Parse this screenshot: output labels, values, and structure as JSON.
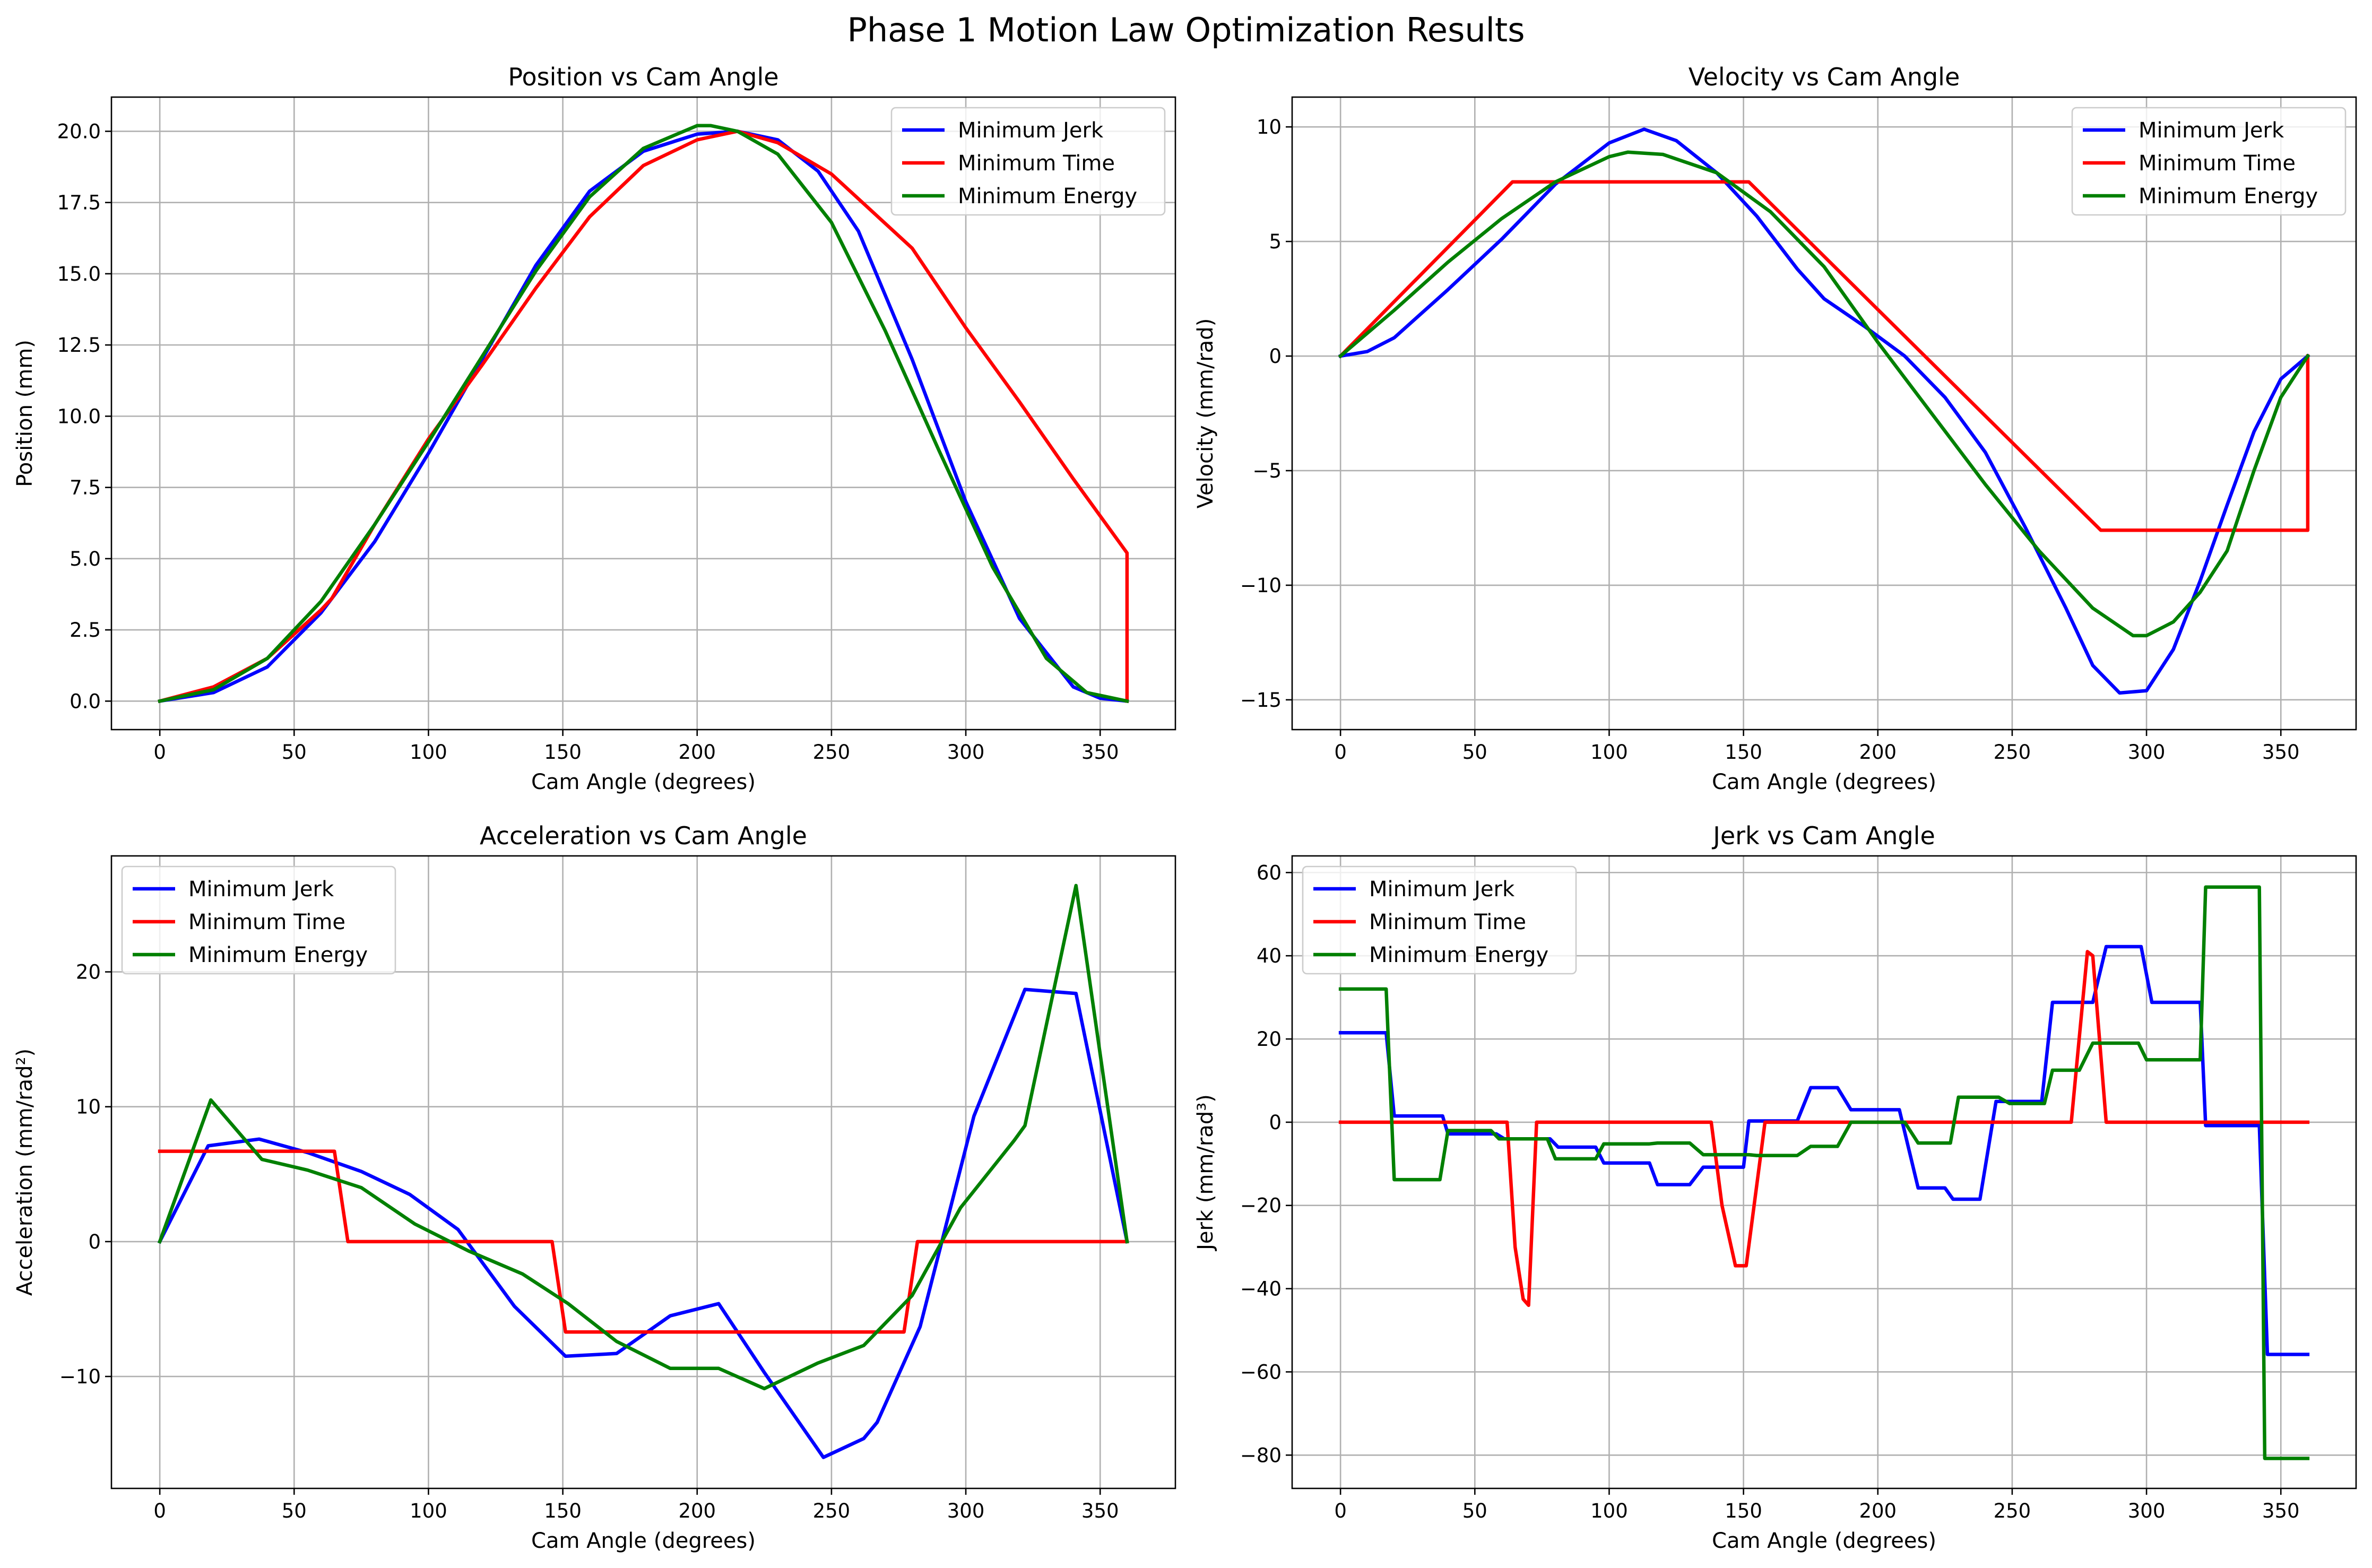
{
  "figure": {
    "title": "Phase 1 Motion Law Optimization Results"
  },
  "colors": {
    "Minimum Jerk": "#0000ff",
    "Minimum Time": "#ff0000",
    "Minimum Energy": "#008000"
  },
  "chart_data": [
    {
      "type": "line",
      "title": "Position vs Cam Angle",
      "xlabel": "Cam Angle (degrees)",
      "ylabel": "Position (mm)",
      "xlim": [
        -18,
        378
      ],
      "ylim": [
        -1.0,
        21.2
      ],
      "xticks": [
        0,
        50,
        100,
        150,
        200,
        250,
        300,
        350
      ],
      "yticks": [
        0.0,
        2.5,
        5.0,
        7.5,
        10.0,
        12.5,
        15.0,
        17.5,
        20.0
      ],
      "ytick_labels": [
        "0.0",
        "2.5",
        "5.0",
        "7.5",
        "10.0",
        "12.5",
        "15.0",
        "17.5",
        "20.0"
      ],
      "grid": true,
      "legend": "upper-right",
      "series": [
        {
          "name": "Minimum Jerk",
          "x": [
            0,
            20,
            40,
            60,
            80,
            100,
            120,
            140,
            160,
            180,
            200,
            215,
            230,
            245,
            260,
            280,
            300,
            320,
            340,
            350,
            360
          ],
          "y": [
            0.0,
            0.3,
            1.2,
            3.1,
            5.6,
            8.7,
            12.0,
            15.3,
            17.9,
            19.3,
            19.9,
            20.0,
            19.7,
            18.6,
            16.5,
            12.0,
            7.0,
            2.9,
            0.5,
            0.1,
            0.0
          ]
        },
        {
          "name": "Minimum Time",
          "x": [
            0,
            20,
            40,
            60,
            64,
            80,
            100,
            120,
            140,
            152,
            160,
            180,
            200,
            215,
            230,
            250,
            280,
            300,
            320,
            340,
            360,
            360
          ],
          "y": [
            0.0,
            0.5,
            1.5,
            3.2,
            3.6,
            6.2,
            9.2,
            11.8,
            14.5,
            16.0,
            17.0,
            18.8,
            19.7,
            20.0,
            19.6,
            18.5,
            15.9,
            13.1,
            10.5,
            7.8,
            5.2,
            0.0
          ]
        },
        {
          "name": "Minimum Energy",
          "x": [
            0,
            20,
            40,
            60,
            80,
            100,
            120,
            140,
            160,
            180,
            200,
            205,
            215,
            230,
            250,
            270,
            290,
            310,
            330,
            345,
            360
          ],
          "y": [
            0.0,
            0.4,
            1.5,
            3.5,
            6.2,
            9.1,
            12.1,
            15.1,
            17.7,
            19.4,
            20.2,
            20.2,
            20.0,
            19.2,
            16.8,
            13.0,
            8.8,
            4.7,
            1.5,
            0.3,
            0.0
          ]
        }
      ]
    },
    {
      "type": "line",
      "title": "Velocity vs Cam Angle",
      "xlabel": "Cam Angle (degrees)",
      "ylabel": "Velocity (mm/rad)",
      "xlim": [
        -18,
        378
      ],
      "ylim": [
        -16.3,
        11.3
      ],
      "xticks": [
        0,
        50,
        100,
        150,
        200,
        250,
        300,
        350
      ],
      "yticks": [
        -15,
        -10,
        -5,
        0,
        5,
        10
      ],
      "ytick_labels": [
        "−15",
        "−10",
        "−5",
        "0",
        "5",
        "10"
      ],
      "grid": true,
      "legend": "upper-right",
      "series": [
        {
          "name": "Minimum Jerk",
          "x": [
            0,
            10,
            20,
            40,
            60,
            80,
            100,
            113,
            125,
            140,
            155,
            170,
            180,
            195,
            210,
            225,
            240,
            255,
            270,
            280,
            290,
            300,
            310,
            320,
            330,
            340,
            350,
            360
          ],
          "y": [
            0.0,
            0.2,
            0.8,
            2.9,
            5.1,
            7.5,
            9.3,
            9.9,
            9.4,
            8.0,
            6.1,
            3.8,
            2.5,
            1.3,
            0.0,
            -1.8,
            -4.2,
            -7.5,
            -11.0,
            -13.5,
            -14.7,
            -14.6,
            -12.8,
            -9.8,
            -6.5,
            -3.3,
            -1.0,
            0.0
          ]
        },
        {
          "name": "Minimum Time",
          "x": [
            0,
            64,
            152,
            283,
            360,
            360
          ],
          "y": [
            0.0,
            7.6,
            7.6,
            -7.6,
            -7.6,
            0.0
          ]
        },
        {
          "name": "Minimum Energy",
          "x": [
            0,
            20,
            40,
            60,
            80,
            100,
            107,
            120,
            140,
            160,
            180,
            200,
            220,
            240,
            260,
            280,
            295,
            300,
            310,
            320,
            330,
            340,
            350,
            360
          ],
          "y": [
            0.0,
            2.0,
            4.1,
            6.0,
            7.6,
            8.7,
            8.9,
            8.8,
            8.0,
            6.3,
            3.9,
            0.6,
            -2.5,
            -5.6,
            -8.5,
            -11.0,
            -12.2,
            -12.2,
            -11.6,
            -10.3,
            -8.5,
            -5.0,
            -1.8,
            0.0
          ]
        }
      ]
    },
    {
      "type": "line",
      "title": "Acceleration vs Cam Angle",
      "xlabel": "Cam Angle (degrees)",
      "ylabel": "Acceleration (mm/rad²)",
      "xlim": [
        -18,
        378
      ],
      "ylim": [
        -18.3,
        28.6
      ],
      "xticks": [
        0,
        50,
        100,
        150,
        200,
        250,
        300,
        350
      ],
      "yticks": [
        -10,
        0,
        10,
        20
      ],
      "ytick_labels": [
        "−10",
        "0",
        "10",
        "20"
      ],
      "grid": true,
      "legend": "upper-left",
      "series": [
        {
          "name": "Minimum Jerk",
          "x": [
            0,
            18,
            37,
            55,
            75,
            93,
            111,
            132,
            151,
            170,
            190,
            208,
            225,
            247,
            262,
            267,
            283,
            303,
            322,
            341,
            360
          ],
          "y": [
            0.0,
            7.1,
            7.6,
            6.6,
            5.2,
            3.5,
            0.9,
            -4.8,
            -8.5,
            -8.3,
            -5.5,
            -4.6,
            -9.7,
            -16.0,
            -14.6,
            -13.4,
            -6.3,
            9.3,
            18.7,
            18.4,
            0.0
          ]
        },
        {
          "name": "Minimum Time",
          "x": [
            0,
            65,
            70,
            146,
            151,
            277,
            282,
            360
          ],
          "y": [
            6.7,
            6.7,
            0.0,
            0.0,
            -6.7,
            -6.7,
            0.0,
            0.0
          ]
        },
        {
          "name": "Minimum Energy",
          "x": [
            0,
            19,
            38,
            55,
            75,
            95,
            115,
            135,
            152,
            170,
            190,
            208,
            225,
            245,
            262,
            280,
            298,
            318,
            322,
            341,
            360
          ],
          "y": [
            0.0,
            10.5,
            6.1,
            5.3,
            4.0,
            1.3,
            -0.7,
            -2.4,
            -4.6,
            -7.4,
            -9.4,
            -9.4,
            -10.9,
            -9.0,
            -7.7,
            -4.0,
            2.5,
            7.5,
            8.6,
            26.4,
            0.0
          ]
        }
      ]
    },
    {
      "type": "line",
      "title": "Jerk vs Cam Angle",
      "xlabel": "Cam Angle (degrees)",
      "ylabel": "Jerk (mm/rad³)",
      "xlim": [
        -18,
        378
      ],
      "ylim": [
        -88,
        64
      ],
      "xticks": [
        0,
        50,
        100,
        150,
        200,
        250,
        300,
        350
      ],
      "yticks": [
        -80,
        -60,
        -40,
        -20,
        0,
        20,
        40,
        60
      ],
      "ytick_labels": [
        "−80",
        "−60",
        "−40",
        "−20",
        "0",
        "20",
        "40",
        "60"
      ],
      "grid": true,
      "legend": "upper-left",
      "series": [
        {
          "name": "Minimum Jerk",
          "x": [
            0,
            17,
            20,
            38,
            40,
            58,
            61,
            78,
            81,
            95,
            98,
            115,
            118,
            130,
            135,
            150,
            152,
            160,
            170,
            175,
            185,
            190,
            205,
            208,
            215,
            225,
            228,
            238,
            244,
            261,
            265,
            280,
            285,
            298,
            302,
            320,
            322,
            342,
            345,
            360
          ],
          "y": [
            21.5,
            21.5,
            1.5,
            1.5,
            -2.8,
            -2.8,
            -4.0,
            -4.0,
            -6.0,
            -6.0,
            -9.8,
            -9.8,
            -15.0,
            -15.0,
            -10.8,
            -10.8,
            0.3,
            0.3,
            0.3,
            8.3,
            8.3,
            3.0,
            3.0,
            3.0,
            -15.8,
            -15.8,
            -18.5,
            -18.5,
            5.0,
            5.0,
            28.8,
            28.8,
            42.2,
            42.2,
            28.8,
            28.8,
            -0.8,
            -0.8,
            -55.8,
            -55.8
          ]
        },
        {
          "name": "Minimum Time",
          "x": [
            0,
            62,
            65,
            68,
            70,
            73,
            138,
            142,
            147,
            151,
            158,
            272,
            278,
            280,
            285,
            360
          ],
          "y": [
            0.0,
            0.0,
            -30.0,
            -42.5,
            -44.0,
            0.0,
            0.0,
            -20.0,
            -34.5,
            -34.5,
            0.0,
            0.0,
            41.0,
            40.0,
            0.0,
            0.0
          ]
        },
        {
          "name": "Minimum Energy",
          "x": [
            0,
            17,
            20,
            37,
            40,
            56,
            59,
            77,
            80,
            95,
            98,
            115,
            118,
            130,
            135,
            152,
            155,
            170,
            175,
            185,
            190,
            205,
            210,
            215,
            227,
            230,
            245,
            249,
            262,
            265,
            275,
            280,
            297,
            300,
            320,
            322,
            342,
            344,
            360
          ],
          "y": [
            32.0,
            32.0,
            -13.8,
            -13.8,
            -2.0,
            -2.0,
            -4.0,
            -4.0,
            -8.8,
            -8.8,
            -5.2,
            -5.2,
            -5.0,
            -5.0,
            -7.8,
            -7.8,
            -8.0,
            -8.0,
            -5.8,
            -5.8,
            0.0,
            0.0,
            0.0,
            -5.0,
            -5.0,
            6.0,
            6.0,
            4.5,
            4.5,
            12.5,
            12.5,
            19.0,
            19.0,
            15.0,
            15.0,
            56.5,
            56.5,
            -80.8,
            -80.8
          ]
        }
      ]
    }
  ]
}
